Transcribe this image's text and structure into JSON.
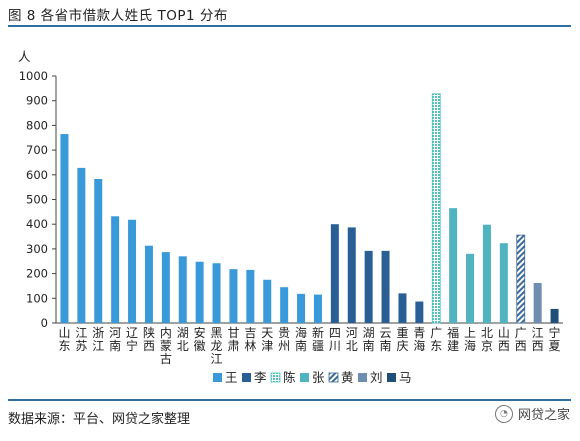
{
  "header": {
    "title": "图 8 各省市借款人姓氏 TOP1 分布"
  },
  "footer": {
    "source": "数据来源：平台、网贷之家整理",
    "watermark": "网贷之家",
    "watermark_icon": "wechat-icon"
  },
  "chart_data": {
    "type": "bar",
    "ylabel": "人",
    "ylim": [
      0,
      1000
    ],
    "yticks": [
      0,
      100,
      200,
      300,
      400,
      500,
      600,
      700,
      800,
      900,
      1000
    ],
    "grid": false,
    "legend_position": "bottom",
    "categories": [
      "山东",
      "江苏",
      "浙江",
      "河南",
      "辽宁",
      "陕西",
      "内蒙古",
      "湖北",
      "安徽",
      "黑龙江",
      "甘肃",
      "吉林",
      "天津",
      "贵州",
      "海南",
      "新疆",
      "四川",
      "河北",
      "湖南",
      "云南",
      "重庆",
      "青海",
      "广东",
      "福建",
      "上海",
      "北京",
      "山西",
      "广西",
      "江西",
      "宁夏"
    ],
    "values": [
      765,
      628,
      583,
      432,
      418,
      313,
      287,
      270,
      248,
      242,
      218,
      215,
      175,
      145,
      118,
      115,
      400,
      387,
      292,
      292,
      120,
      87,
      928,
      465,
      280,
      398,
      323,
      356,
      162,
      57
    ],
    "category_series": [
      "王",
      "王",
      "王",
      "王",
      "王",
      "王",
      "王",
      "王",
      "王",
      "王",
      "王",
      "王",
      "王",
      "王",
      "王",
      "王",
      "李",
      "李",
      "李",
      "李",
      "李",
      "李",
      "陈",
      "张",
      "张",
      "张",
      "张",
      "黄",
      "刘",
      "马"
    ],
    "series": [
      {
        "name": "王",
        "color": "#3a9ad9",
        "pattern": "solid"
      },
      {
        "name": "李",
        "color": "#2a5f95",
        "pattern": "solid"
      },
      {
        "name": "陈",
        "color": "#52c1bd",
        "pattern": "dots"
      },
      {
        "name": "张",
        "color": "#4fb3c0",
        "pattern": "solid"
      },
      {
        "name": "黄",
        "color": "#3b6a99",
        "pattern": "stripes"
      },
      {
        "name": "刘",
        "color": "#6f8cb1",
        "pattern": "solid"
      },
      {
        "name": "马",
        "color": "#1f4e79",
        "pattern": "solid"
      }
    ]
  }
}
